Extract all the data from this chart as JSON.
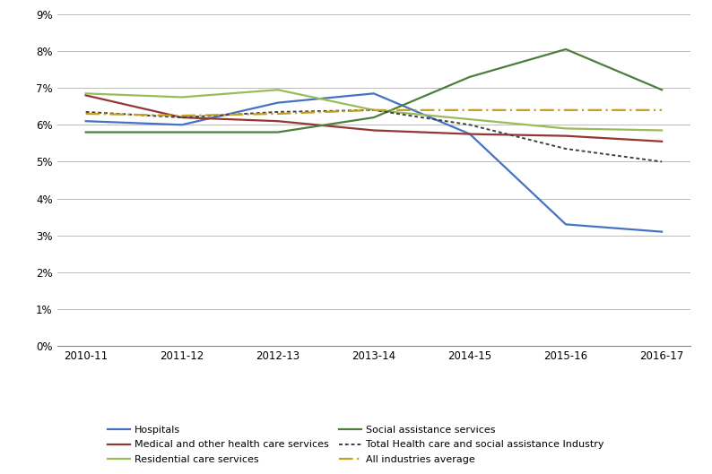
{
  "x_labels": [
    "2010-11",
    "2011-12",
    "2012-13",
    "2013-14",
    "2014-15",
    "2015-16",
    "2016-17"
  ],
  "x_positions": [
    0,
    1,
    2,
    3,
    4,
    5,
    6
  ],
  "hospitals": [
    6.1,
    6.0,
    6.6,
    6.85,
    5.75,
    3.3,
    3.1
  ],
  "medical": [
    6.8,
    6.2,
    6.1,
    5.85,
    5.75,
    5.7,
    5.55
  ],
  "residential": [
    6.85,
    6.75,
    6.95,
    6.4,
    6.15,
    5.9,
    5.85
  ],
  "social": [
    5.8,
    5.8,
    5.8,
    6.2,
    7.3,
    8.05,
    6.95
  ],
  "total_health": [
    6.35,
    6.2,
    6.35,
    6.4,
    6.0,
    5.35,
    5.0
  ],
  "all_industries": [
    6.3,
    6.25,
    6.3,
    6.4,
    6.4,
    6.4,
    6.4
  ],
  "hospitals_color": "#4472C4",
  "medical_color": "#943634",
  "residential_color": "#9BBB59",
  "social_color": "#4E7D3D",
  "total_health_color": "#404040",
  "all_industries_color": "#C4A020",
  "ylim": [
    0,
    9
  ],
  "ytick_vals": [
    0,
    1,
    2,
    3,
    4,
    5,
    6,
    7,
    8,
    9
  ],
  "ytick_labels": [
    "0%",
    "1%",
    "2%",
    "3%",
    "4%",
    "5%",
    "6%",
    "7%",
    "8%",
    "9%"
  ],
  "legend_hospitals": "Hospitals",
  "legend_medical": "Medical and other health care services",
  "legend_residential": "Residential care services",
  "legend_social": "Social assistance services",
  "legend_total": "Total Health care and social assistance Industry",
  "legend_all": "All industries average",
  "bg_color": "#FFFFFF",
  "grid_color": "#BBBBBB"
}
